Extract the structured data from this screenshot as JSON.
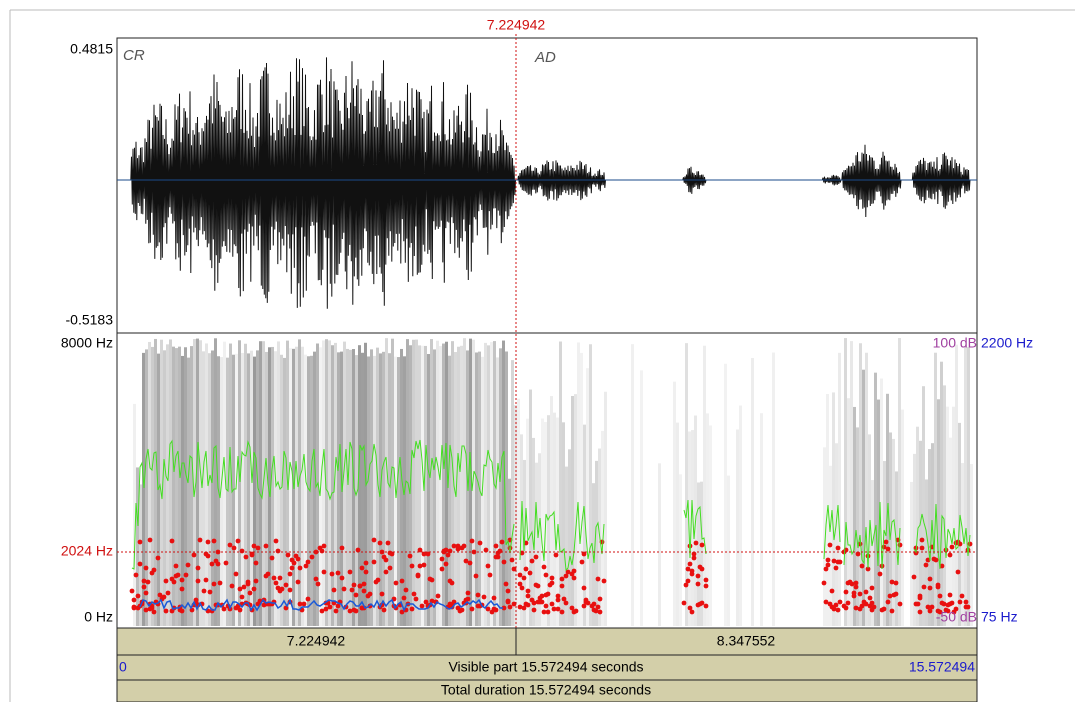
{
  "cursor": {
    "time": "7.224942"
  },
  "waveform": {
    "max": "0.4815",
    "min": "-0.5183",
    "tiers": [
      "CR",
      "AD"
    ]
  },
  "spectrogram": {
    "freq_max": "8000 Hz",
    "cursor_freq": "2024 Hz",
    "freq_min": "0 Hz",
    "intensity_max": "100 dB",
    "pitch_max": "2200 Hz",
    "intensity_min": "-50 dB",
    "pitch_min": "75 Hz"
  },
  "time_bar": {
    "segments": [
      "7.224942",
      "8.347552"
    ],
    "visible_start": "0",
    "visible_label": "Visible part 15.572494 seconds",
    "visible_end": "15.572494",
    "total": "Total duration 15.572494 seconds"
  }
}
